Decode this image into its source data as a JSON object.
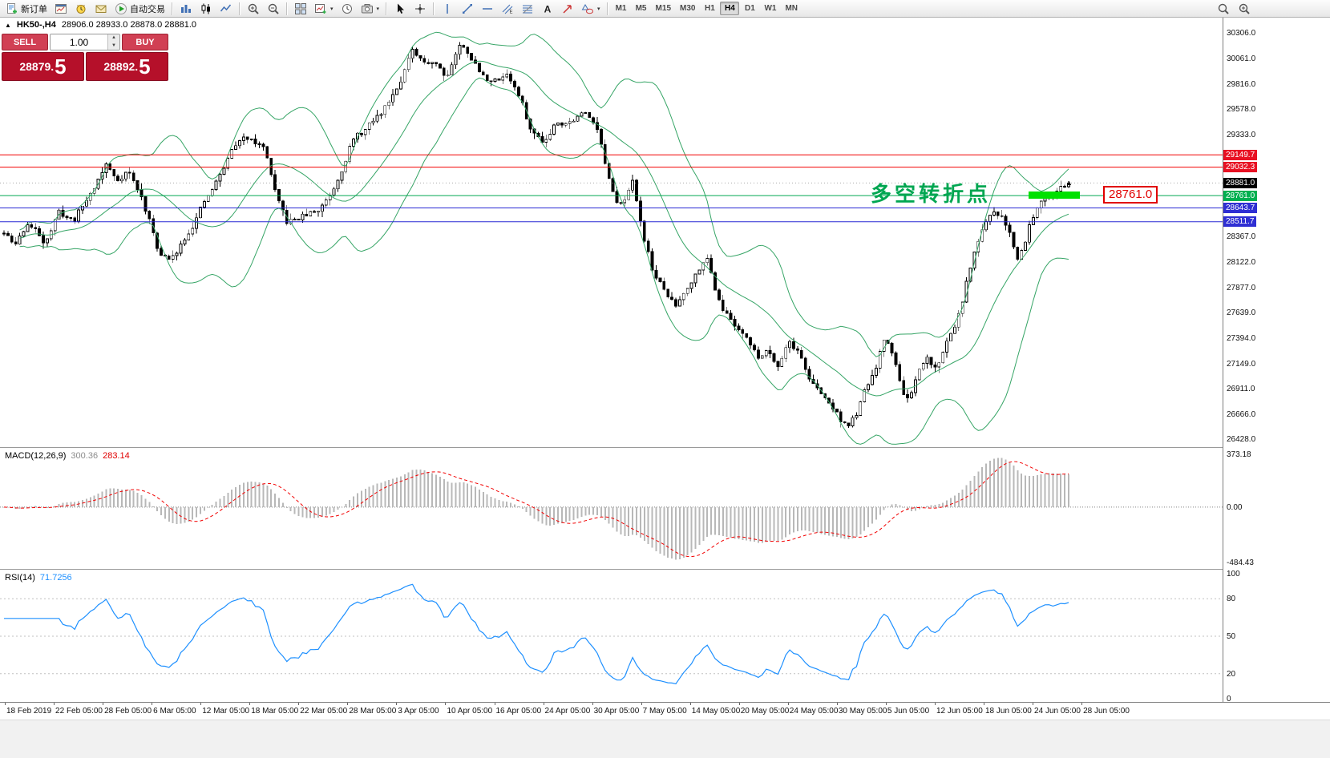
{
  "toolbar": {
    "new_order": "新订单",
    "autotrading": "自动交易",
    "timeframes": [
      "M1",
      "M5",
      "M15",
      "M30",
      "H1",
      "H4",
      "D1",
      "W1",
      "MN"
    ],
    "active_timeframe": "H4"
  },
  "icons": {
    "symbol_marker": "▲",
    "caret_down": "▾",
    "spinner_up": "▲",
    "spinner_down": "▼",
    "arrow_marker": "▲"
  },
  "trade_panel": {
    "sell_label": "SELL",
    "buy_label": "BUY",
    "volume": "1.00",
    "sell_price_main": "28879.",
    "sell_price_big": "5",
    "buy_price_main": "28892.",
    "buy_price_big": "5"
  },
  "chart": {
    "symbol": "HK50-,H4",
    "ohlc": "28906.0 28933.0 28878.0 28881.0",
    "annotation": "多空转折点",
    "price_callout": "28761.0",
    "current_price_tag": {
      "label": "28881.0",
      "value": 28881.0,
      "bg": "#000000"
    },
    "hlines": [
      {
        "label": "29149.7",
        "value": 29149.7,
        "color": "#f20000",
        "tag_bg": "#e81123"
      },
      {
        "label": "29032.3",
        "value": 29032.3,
        "color": "#f20000",
        "tag_bg": "#e81123"
      },
      {
        "label": "28761.0",
        "value": 28761.0,
        "color": "#00a651",
        "tag_bg": "#00b050"
      },
      {
        "label": "28643.7",
        "value": 28643.7,
        "color": "#2828d4",
        "tag_bg": "#2f2fd3"
      },
      {
        "label": "28511.7",
        "value": 28511.7,
        "color": "#2828d4",
        "tag_bg": "#2f2fd3"
      }
    ],
    "price_ticks": [
      {
        "label": "30306.0",
        "value": 30306
      },
      {
        "label": "30061.0",
        "value": 30061
      },
      {
        "label": "29816.0",
        "value": 29816
      },
      {
        "label": "29578.0",
        "value": 29578
      },
      {
        "label": "29333.0",
        "value": 29333
      },
      {
        "label": "28367.0",
        "value": 28367
      },
      {
        "label": "28122.0",
        "value": 28122
      },
      {
        "label": "27877.0",
        "value": 27877
      },
      {
        "label": "27639.0",
        "value": 27639
      },
      {
        "label": "27394.0",
        "value": 27394
      },
      {
        "label": "27149.0",
        "value": 27149
      },
      {
        "label": "26911.0",
        "value": 26911
      },
      {
        "label": "26666.0",
        "value": 26666
      },
      {
        "label": "26428.0",
        "value": 26428
      }
    ],
    "time_labels": [
      "18 Feb 2019",
      "22 Feb 05:00",
      "28 Feb 05:00",
      "6 Mar 05:00",
      "12 Mar 05:00",
      "18 Mar 05:00",
      "22 Mar 05:00",
      "28 Mar 05:00",
      "3 Apr 05:00",
      "10 Apr 05:00",
      "16 Apr 05:00",
      "24 Apr 05:00",
      "30 Apr 05:00",
      "7 May 05:00",
      "14 May 05:00",
      "20 May 05:00",
      "24 May 05:00",
      "30 May 05:00",
      "5 Jun 05:00",
      "12 Jun 05:00",
      "18 Jun 05:00",
      "24 Jun 05:00",
      "28 Jun 05:00"
    ]
  },
  "macd": {
    "name": "MACD(12,26,9)",
    "value": "300.36",
    "signal_value": "283.14",
    "scale": {
      "top": "373.18",
      "zero": "0.00",
      "bottom": "-484.43"
    }
  },
  "rsi": {
    "name": "RSI(14)",
    "value": "71.7256",
    "levels": [
      80,
      50,
      20
    ],
    "scale": [
      {
        "label": "100",
        "value": 100
      },
      {
        "label": "80",
        "value": 80
      },
      {
        "label": "50",
        "value": 50
      },
      {
        "label": "20",
        "value": 20
      },
      {
        "label": "0",
        "value": 0
      }
    ]
  },
  "chart_data": {
    "type": "candlestick",
    "symbol": "HK50-",
    "timeframe": "H4",
    "candles": 272,
    "seed": 11,
    "noise": 70,
    "visible_price_range": [
      26428.0,
      30306.0
    ],
    "colors": {
      "band": "#36a566",
      "bull": "#ffffff",
      "bear": "#000000",
      "macd_hist": "#b8b8b8",
      "macd_signal": "#f20000",
      "rsi_line": "#1e90ff"
    },
    "overlays": {
      "bollinger_period": 20,
      "bollinger_deviation": 2
    },
    "indicators": [
      {
        "type": "macd",
        "params": "12,26,9",
        "current": 300.36,
        "signal": 283.14,
        "scale_max": 373.18,
        "scale_min": -484.43
      },
      {
        "type": "rsi",
        "params": "14",
        "current": 71.7256,
        "levels": [
          80,
          50,
          20
        ]
      }
    ],
    "anchors": [
      [
        0.0,
        28400
      ],
      [
        0.01,
        28270
      ],
      [
        0.022,
        28500
      ],
      [
        0.038,
        28330
      ],
      [
        0.052,
        28600
      ],
      [
        0.065,
        28520
      ],
      [
        0.08,
        28760
      ],
      [
        0.096,
        29060
      ],
      [
        0.106,
        28900
      ],
      [
        0.116,
        29020
      ],
      [
        0.13,
        28720
      ],
      [
        0.146,
        28220
      ],
      [
        0.157,
        28130
      ],
      [
        0.17,
        28380
      ],
      [
        0.188,
        28680
      ],
      [
        0.203,
        28950
      ],
      [
        0.217,
        29250
      ],
      [
        0.233,
        29330
      ],
      [
        0.246,
        29190
      ],
      [
        0.256,
        28720
      ],
      [
        0.266,
        28490
      ],
      [
        0.28,
        28560
      ],
      [
        0.296,
        28620
      ],
      [
        0.31,
        28850
      ],
      [
        0.326,
        29270
      ],
      [
        0.34,
        29390
      ],
      [
        0.354,
        29540
      ],
      [
        0.368,
        29790
      ],
      [
        0.383,
        30130
      ],
      [
        0.393,
        30010
      ],
      [
        0.404,
        30060
      ],
      [
        0.416,
        29910
      ],
      [
        0.427,
        30200
      ],
      [
        0.437,
        30130
      ],
      [
        0.449,
        29900
      ],
      [
        0.461,
        29850
      ],
      [
        0.473,
        29940
      ],
      [
        0.485,
        29680
      ],
      [
        0.496,
        29350
      ],
      [
        0.508,
        29290
      ],
      [
        0.519,
        29490
      ],
      [
        0.531,
        29470
      ],
      [
        0.544,
        29550
      ],
      [
        0.556,
        29480
      ],
      [
        0.567,
        28960
      ],
      [
        0.575,
        28640
      ],
      [
        0.583,
        28760
      ],
      [
        0.591,
        28890
      ],
      [
        0.599,
        28460
      ],
      [
        0.609,
        28060
      ],
      [
        0.619,
        27860
      ],
      [
        0.631,
        27700
      ],
      [
        0.641,
        27890
      ],
      [
        0.651,
        28040
      ],
      [
        0.659,
        28220
      ],
      [
        0.667,
        27910
      ],
      [
        0.677,
        27660
      ],
      [
        0.687,
        27510
      ],
      [
        0.697,
        27450
      ],
      [
        0.707,
        27210
      ],
      [
        0.717,
        27300
      ],
      [
        0.727,
        27160
      ],
      [
        0.737,
        27390
      ],
      [
        0.747,
        27260
      ],
      [
        0.757,
        27010
      ],
      [
        0.767,
        26860
      ],
      [
        0.777,
        26760
      ],
      [
        0.787,
        26610
      ],
      [
        0.794,
        26560
      ],
      [
        0.802,
        26700
      ],
      [
        0.811,
        26940
      ],
      [
        0.819,
        27090
      ],
      [
        0.827,
        27390
      ],
      [
        0.835,
        27260
      ],
      [
        0.843,
        26910
      ],
      [
        0.851,
        26810
      ],
      [
        0.859,
        27040
      ],
      [
        0.867,
        27190
      ],
      [
        0.875,
        27110
      ],
      [
        0.883,
        27290
      ],
      [
        0.891,
        27490
      ],
      [
        0.899,
        27690
      ],
      [
        0.907,
        28040
      ],
      [
        0.915,
        28340
      ],
      [
        0.923,
        28490
      ],
      [
        0.931,
        28590
      ],
      [
        0.939,
        28550
      ],
      [
        0.945,
        28410
      ],
      [
        0.951,
        28160
      ],
      [
        0.957,
        28260
      ],
      [
        0.963,
        28490
      ],
      [
        0.971,
        28690
      ],
      [
        0.979,
        28840
      ],
      [
        0.987,
        28800
      ],
      [
        1.0,
        28881
      ]
    ]
  }
}
